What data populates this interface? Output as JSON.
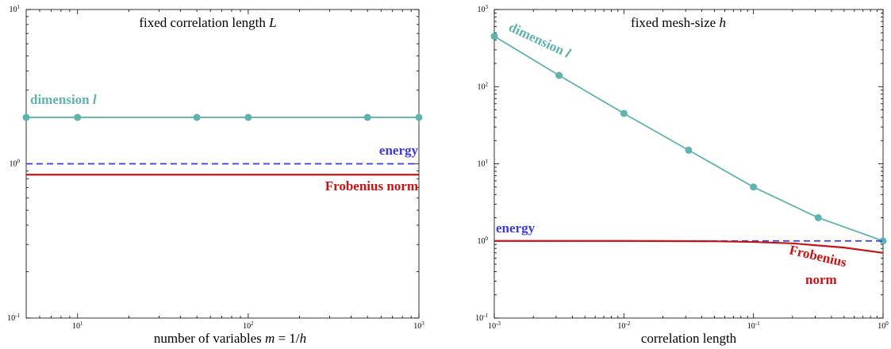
{
  "colors": {
    "dimension": "#5fb3ad",
    "energy": "#3a3ae6",
    "frobenius": "#c81414"
  },
  "chart_data": [
    {
      "type": "line",
      "title_text": "fixed correlation length ",
      "title_var": "L",
      "xlabel_text": "number of variables ",
      "xlabel_var": "m",
      "xlabel_rest": " = 1/",
      "xlabel_var2": "h",
      "xscale": "log",
      "yscale": "log",
      "xlim": [
        5,
        1000
      ],
      "ylim": [
        0.1,
        10
      ],
      "x_ticks": [
        {
          "value": 10,
          "base": "10",
          "exp": "1"
        },
        {
          "value": 100,
          "base": "10",
          "exp": "2"
        },
        {
          "value": 1000,
          "base": "10",
          "exp": "3"
        }
      ],
      "y_ticks": [
        {
          "value": 0.1,
          "base": "10",
          "exp": "-1"
        },
        {
          "value": 1,
          "base": "10",
          "exp": "0"
        },
        {
          "value": 10,
          "base": "10",
          "exp": "1"
        }
      ],
      "series": [
        {
          "key": "dimension",
          "name_text": "dimension ",
          "name_var": "l",
          "style": "solid-markers",
          "x": [
            5,
            10,
            50,
            100,
            500,
            1000
          ],
          "y": [
            2,
            2,
            2,
            2,
            2,
            2
          ]
        },
        {
          "key": "energy",
          "name_text": "energy",
          "style": "dashed",
          "x": [
            5,
            1000
          ],
          "y": [
            1,
            1
          ]
        },
        {
          "key": "frobenius",
          "name_text": "Frobenius norm",
          "style": "solid-thick",
          "x": [
            5,
            1000
          ],
          "y": [
            0.85,
            0.85
          ]
        }
      ]
    },
    {
      "type": "line",
      "title_text": "fixed mesh-size ",
      "title_var": "h",
      "xlabel_text": "correlation length",
      "xscale": "log",
      "yscale": "log",
      "xlim": [
        0.001,
        1
      ],
      "ylim": [
        0.1,
        1000
      ],
      "x_ticks": [
        {
          "value": 0.001,
          "base": "10",
          "exp": "-3"
        },
        {
          "value": 0.01,
          "base": "10",
          "exp": "-2"
        },
        {
          "value": 0.1,
          "base": "10",
          "exp": "-1"
        },
        {
          "value": 1,
          "base": "10",
          "exp": "0"
        }
      ],
      "y_ticks": [
        {
          "value": 0.1,
          "base": "10",
          "exp": "-1"
        },
        {
          "value": 1,
          "base": "10",
          "exp": "0"
        },
        {
          "value": 10,
          "base": "10",
          "exp": "1"
        },
        {
          "value": 100,
          "base": "10",
          "exp": "2"
        },
        {
          "value": 1000,
          "base": "10",
          "exp": "3"
        }
      ],
      "series": [
        {
          "key": "dimension",
          "name_text": "dimension ",
          "name_var": "l",
          "style": "solid-markers",
          "x": [
            0.001,
            0.00316,
            0.01,
            0.0316,
            0.1,
            0.316,
            1
          ],
          "y": [
            450,
            140,
            45,
            15,
            5,
            2,
            1
          ]
        },
        {
          "key": "energy",
          "name_text": "energy",
          "style": "dashed",
          "x": [
            0.001,
            1
          ],
          "y": [
            1,
            1
          ]
        },
        {
          "key": "frobenius",
          "name_text": "Frobenius",
          "name_text2": "norm",
          "style": "solid-thick",
          "x": [
            0.001,
            0.01,
            0.05,
            0.1,
            0.2,
            0.5,
            1
          ],
          "y": [
            1,
            1,
            0.99,
            0.97,
            0.93,
            0.82,
            0.7
          ]
        }
      ]
    }
  ]
}
